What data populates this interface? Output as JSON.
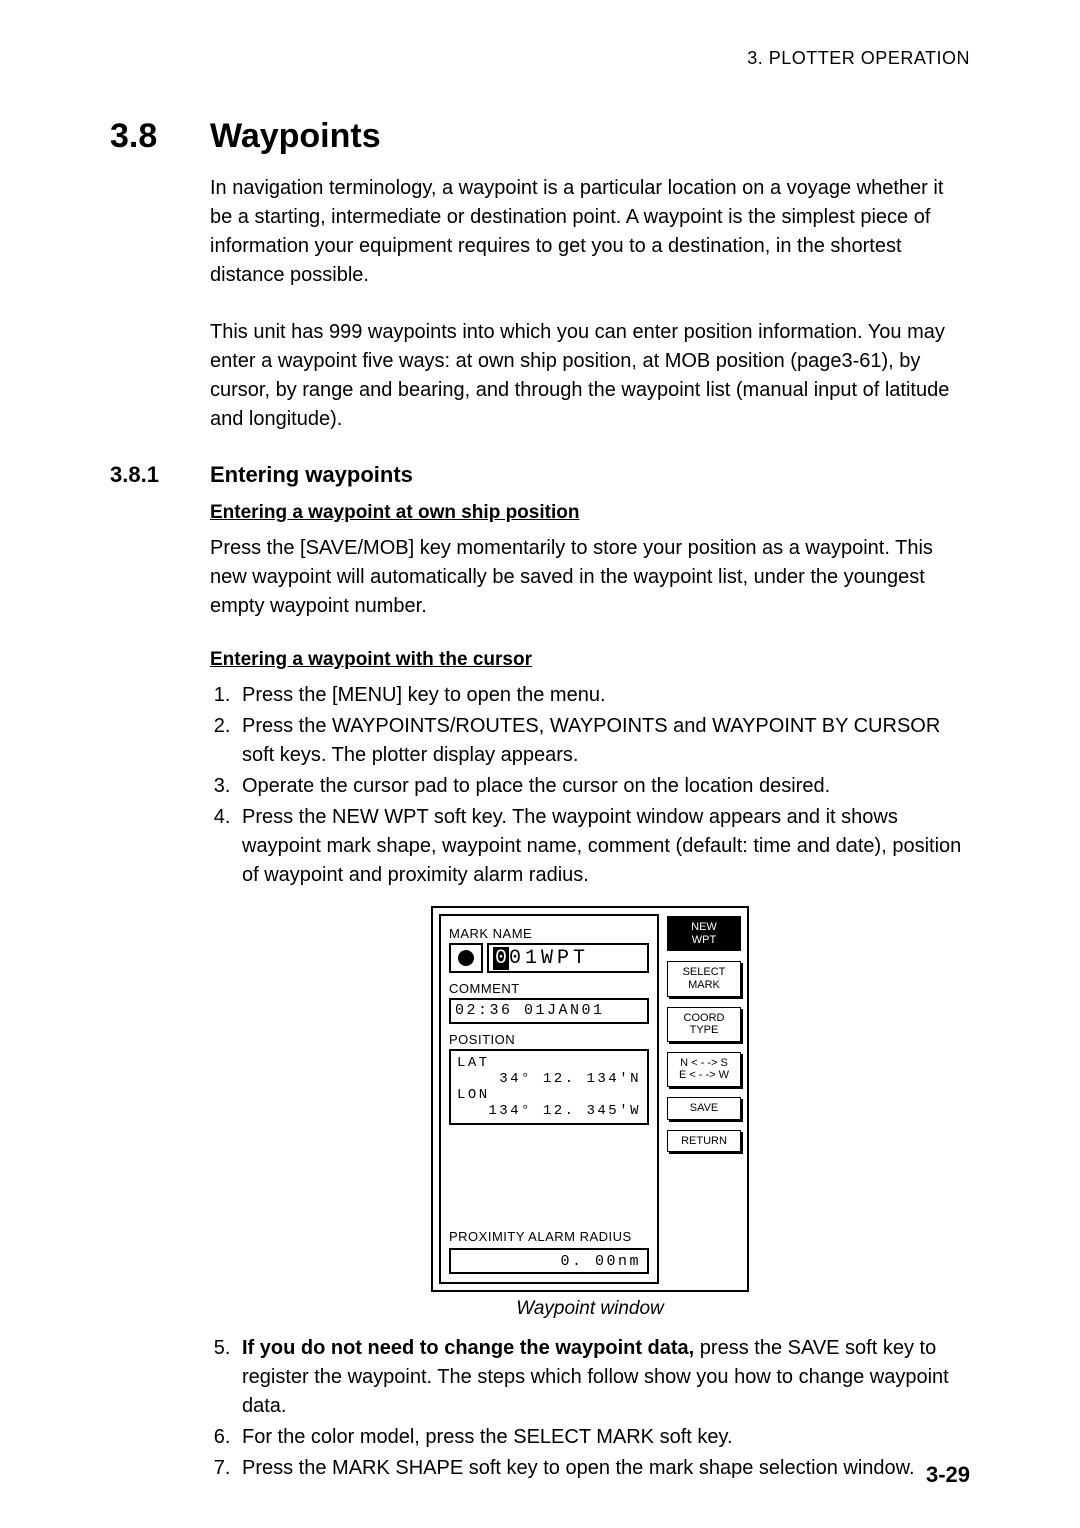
{
  "header": {
    "chapter": "3. PLOTTER OPERATION"
  },
  "section": {
    "num": "3.8",
    "title": "Waypoints"
  },
  "para1": "In navigation terminology, a waypoint is a particular location on a voyage whether it be a starting, intermediate or destination point. A waypoint is the simplest piece of information your equipment requires to get you to a destination, in the shortest distance possible.",
  "para2": "This unit has 999 waypoints into which you can enter position information. You may enter a waypoint five ways: at own ship position, at MOB position (page3-61), by cursor, by range and bearing, and through the waypoint list (manual input of latitude and longitude).",
  "subsection": {
    "num": "3.8.1",
    "title": "Entering waypoints"
  },
  "h3a": "Entering a waypoint at own ship position",
  "para3": "Press the [SAVE/MOB] key momentarily to store your position as a waypoint. This new waypoint will automatically be saved in the waypoint list, under the youngest empty waypoint number.",
  "h3b": "Entering a waypoint with the cursor",
  "steps_a": {
    "s1": "Press the [MENU] key to open the menu.",
    "s2": "Press the WAYPOINTS/ROUTES, WAYPOINTS and WAYPOINT BY CURSOR soft keys. The plotter display appears.",
    "s3": "Operate the cursor pad to place the cursor on the location desired.",
    "s4": "Press the NEW WPT soft key. The waypoint window appears and it shows waypoint mark shape, waypoint name, comment (default: time and date), position of waypoint and proximity alarm radius."
  },
  "figure": {
    "labels": {
      "mark_name": "MARK NAME",
      "comment": "COMMENT",
      "position": "POSITION",
      "lat": "LAT",
      "lon": "LON",
      "prox": "PROXIMITY ALARM RADIUS"
    },
    "name_cursor": "0",
    "name_rest": "01WPT",
    "comment_val": "02:36 01JAN01",
    "lat_val": "34° 12. 134'N",
    "lon_val": "134° 12. 345'W",
    "prox_val": "0. 00nm",
    "softkeys": {
      "k1a": "NEW",
      "k1b": "WPT",
      "k2a": "SELECT",
      "k2b": "MARK",
      "k3a": "COORD",
      "k3b": "TYPE",
      "k4a": "N < - -> S",
      "k4b": "E < - -> W",
      "k5": "SAVE",
      "k6": "RETURN"
    },
    "caption": "Waypoint window"
  },
  "steps_b": {
    "s5_bold": "If you do not need to change the waypoint data,",
    "s5_rest": " press the SAVE soft key to register the waypoint. The steps which follow show you how to change waypoint data.",
    "s6": "For the color model, press the SELECT MARK soft key.",
    "s7": "Press the MARK SHAPE soft key to open the mark shape selection window."
  },
  "page_number": "3-29"
}
